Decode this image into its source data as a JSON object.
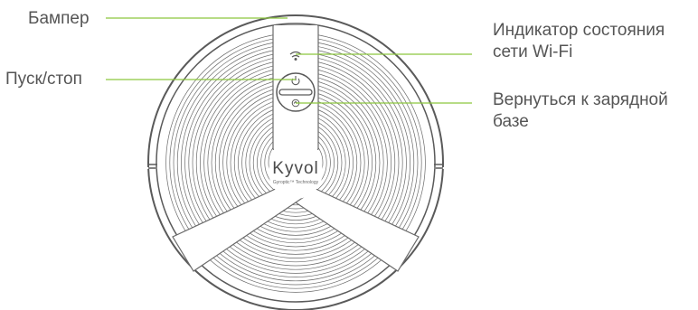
{
  "labels": {
    "bumper": "Бампер",
    "start_stop": "Пуск/стоп",
    "wifi_line1": "Индикатор состояния",
    "wifi_line2": "сети Wi-Fi",
    "dock_line1": "Вернуться к зарядной",
    "dock_line2": "базе"
  },
  "robot": {
    "brand": "Kyvol",
    "tagline": "Gyroptic™ Technology"
  },
  "icons": [
    "wifi-icon",
    "power-icon",
    "home-icon"
  ],
  "colors": {
    "leader_line": "#8cc63f",
    "outline": "#5a5a5a",
    "label_text": "#555555"
  }
}
